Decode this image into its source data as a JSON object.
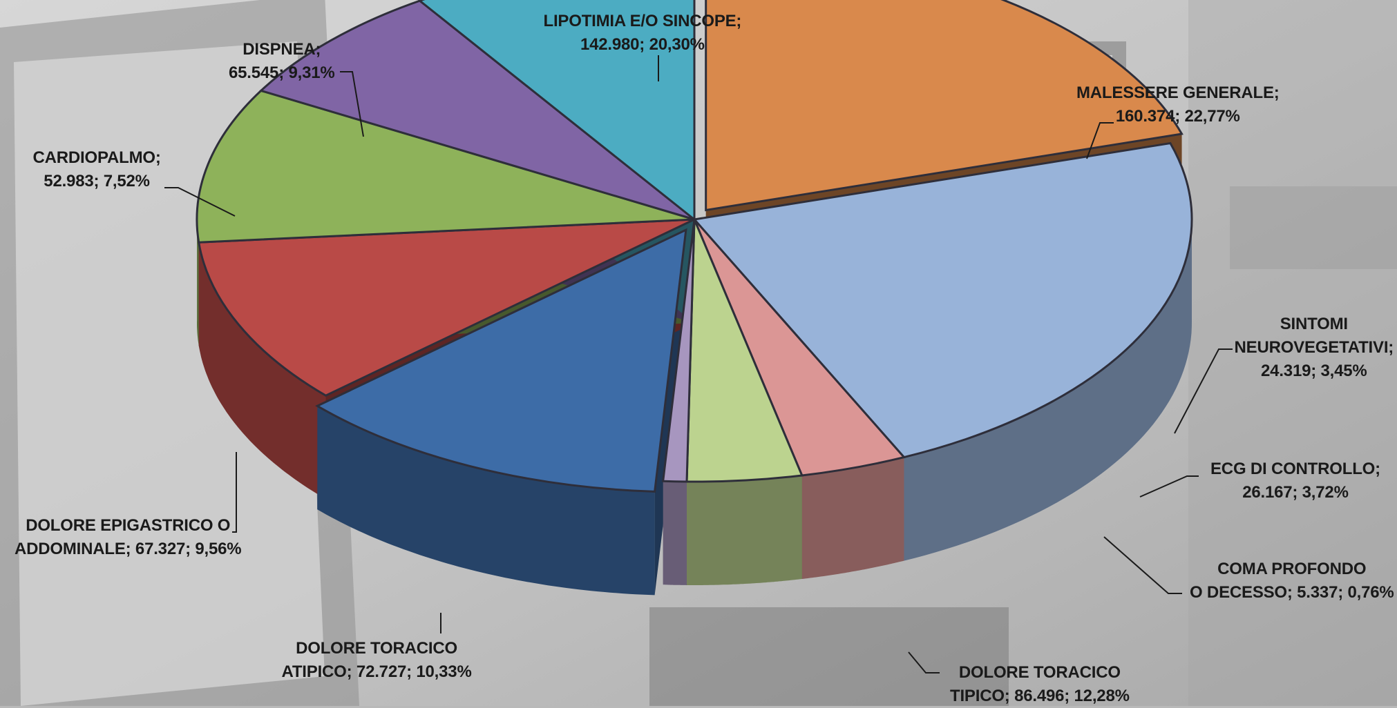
{
  "chart_data": {
    "type": "pie",
    "title": "",
    "start_angle_deg": 90,
    "exploded": [
      "LIPOTIMIA E/O SINCOPE",
      "DOLORE TORACICO TIPICO"
    ],
    "slices": [
      {
        "label": "LIPOTIMIA E/O SINCOPE",
        "value": 142980,
        "percent": 20.3,
        "color": "#d9894c",
        "label_lines": [
          "LIPOTIMIA E/O SINCOPE;",
          "142.980; 20,30%"
        ]
      },
      {
        "label": "MALESSERE GENERALE",
        "value": 160374,
        "percent": 22.77,
        "color": "#98b3d9",
        "label_lines": [
          "MALESSERE GENERALE;",
          "160.374; 22,77%"
        ]
      },
      {
        "label": "SINTOMI NEUROVEGETATIVI",
        "value": 24319,
        "percent": 3.45,
        "color": "#db9695",
        "label_lines": [
          "SINTOMI",
          "NEUROVEGETATIVI;",
          "24.319; 3,45%"
        ]
      },
      {
        "label": "ECG DI CONTROLLO",
        "value": 26167,
        "percent": 3.72,
        "color": "#bcd38f",
        "label_lines": [
          "ECG DI CONTROLLO;",
          "26.167; 3,72%"
        ]
      },
      {
        "label": "COMA PROFONDO O DECESSO",
        "value": 5337,
        "percent": 0.76,
        "color": "#a796bf",
        "label_lines": [
          "COMA PROFONDO",
          "O DECESSO;  5.337; 0,76%"
        ]
      },
      {
        "label": "DOLORE TORACICO TIPICO",
        "value": 86496,
        "percent": 12.28,
        "color": "#3d6ca7",
        "label_lines": [
          "DOLORE TORACICO",
          "TIPICO; 86.496; 12,28%"
        ]
      },
      {
        "label": "DOLORE TORACICO ATIPICO",
        "value": 72727,
        "percent": 10.33,
        "color": "#b94a47",
        "label_lines": [
          "DOLORE TORACICO",
          "ATIPICO; 72.727; 10,33%"
        ]
      },
      {
        "label": "DOLORE EPIGASTRICO O ADDOMINALE",
        "value": 67327,
        "percent": 9.56,
        "color": "#8eb25a",
        "label_lines": [
          "DOLORE EPIGASTRICO O",
          "ADDOMINALE; 67.327; 9,56%"
        ]
      },
      {
        "label": "CARDIOPALMO",
        "value": 52983,
        "percent": 7.52,
        "color": "#8065a5",
        "label_lines": [
          "CARDIOPALMO;",
          "52.983; 7,52%"
        ]
      },
      {
        "label": "DISPNEA",
        "value": 65545,
        "percent": 9.31,
        "color": "#4cacc2",
        "label_lines": [
          "DISPNEA;",
          "65.545; 9,31%"
        ]
      }
    ]
  }
}
